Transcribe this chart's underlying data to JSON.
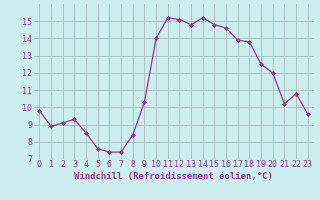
{
  "x": [
    0,
    1,
    2,
    3,
    4,
    5,
    6,
    7,
    8,
    9,
    10,
    11,
    12,
    13,
    14,
    15,
    16,
    17,
    18,
    19,
    20,
    21,
    22,
    23
  ],
  "y": [
    9.8,
    8.9,
    9.1,
    9.3,
    8.5,
    7.6,
    7.4,
    7.4,
    8.4,
    10.3,
    14.0,
    15.2,
    15.1,
    14.8,
    15.2,
    14.8,
    14.6,
    13.9,
    13.8,
    12.5,
    12.0,
    10.2,
    10.8,
    9.6
  ],
  "line_color": "#993399",
  "marker": "D",
  "marker_size": 2.0,
  "line_width": 0.9,
  "bg_color": "#cceeee",
  "grid_color": "#aabbbb",
  "xlabel": "Windchill (Refroidissement éolien,°C)",
  "xlabel_color": "#993399",
  "xlabel_fontsize": 6.5,
  "tick_label_color": "#993399",
  "tick_label_fontsize": 6.0,
  "ylim": [
    7,
    16
  ],
  "yticks": [
    7,
    8,
    9,
    10,
    11,
    12,
    13,
    14,
    15
  ],
  "xlim": [
    -0.5,
    23.5
  ],
  "xticks": [
    0,
    1,
    2,
    3,
    4,
    5,
    6,
    7,
    8,
    9,
    10,
    11,
    12,
    13,
    14,
    15,
    16,
    17,
    18,
    19,
    20,
    21,
    22,
    23
  ]
}
